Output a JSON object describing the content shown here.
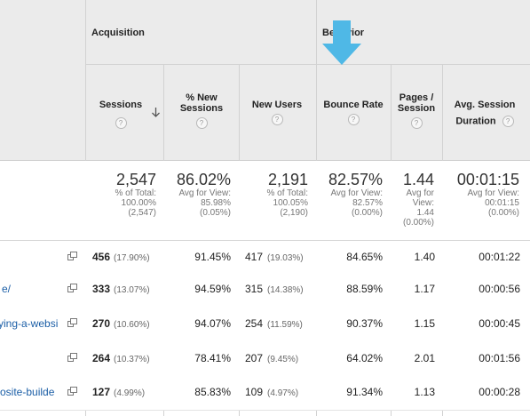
{
  "groups": {
    "acquisition": "Acquisition",
    "behavior": "Behavior"
  },
  "columns": {
    "sessions": "Sessions",
    "new_sessions_1": "% New",
    "new_sessions_2": "Sessions",
    "new_users": "New Users",
    "bounce_rate": "Bounce Rate",
    "pages_1": "Pages /",
    "pages_2": "Session",
    "duration_1": "Avg. Session",
    "duration_2": "Duration",
    "help_glyph": "?"
  },
  "totals": {
    "sessions": {
      "value": "2,547",
      "l1": "% of Total:",
      "l2": "100.00%",
      "l3": "(2,547)"
    },
    "new_sessions": {
      "value": "86.02%",
      "l1": "Avg for View:",
      "l2": "85.98%",
      "l3": "(0.05%)"
    },
    "new_users": {
      "value": "2,191",
      "l1": "% of Total:",
      "l2": "100.05%",
      "l3": "(2,190)"
    },
    "bounce_rate": {
      "value": "82.57%",
      "l1": "Avg for View:",
      "l2": "82.57%",
      "l3": "(0.00%)"
    },
    "pages": {
      "value": "1.44",
      "l1": "Avg for",
      "l2": "View:",
      "l3": "1.44",
      "l4": "(0.00%)"
    },
    "duration": {
      "value": "00:01:15",
      "l1": "Avg for View:",
      "l2": "00:01:15",
      "l3": "(0.00%)"
    }
  },
  "rows": [
    {
      "page": "",
      "sessions": "456",
      "sessions_pct": "(17.90%)",
      "new_sessions": "91.45%",
      "new_users": "417",
      "new_users_pct": "(19.03%)",
      "bounce": "84.65%",
      "pages": "1.40",
      "duration": "00:01:22"
    },
    {
      "page": "e/",
      "sessions": "333",
      "sessions_pct": "(13.07%)",
      "new_sessions": "94.59%",
      "new_users": "315",
      "new_users_pct": "(14.38%)",
      "bounce": "88.59%",
      "pages": "1.17",
      "duration": "00:00:56"
    },
    {
      "page": "ying-a-websi",
      "sessions": "270",
      "sessions_pct": "(10.60%)",
      "new_sessions": "94.07%",
      "new_users": "254",
      "new_users_pct": "(11.59%)",
      "bounce": "90.37%",
      "pages": "1.15",
      "duration": "00:00:45"
    },
    {
      "page": "",
      "sessions": "264",
      "sessions_pct": "(10.37%)",
      "new_sessions": "78.41%",
      "new_users": "207",
      "new_users_pct": "(9.45%)",
      "bounce": "64.02%",
      "pages": "2.01",
      "duration": "00:01:56"
    },
    {
      "page": "osite-builde",
      "sessions": "127",
      "sessions_pct": "(4.99%)",
      "new_sessions": "85.83%",
      "new_users": "109",
      "new_users_pct": "(4.97%)",
      "bounce": "91.34%",
      "pages": "1.13",
      "duration": "00:00:28"
    }
  ],
  "colors": {
    "arrow": "#4fb8e6",
    "link": "#1b5ea6",
    "header_bg": "#ebebeb"
  }
}
